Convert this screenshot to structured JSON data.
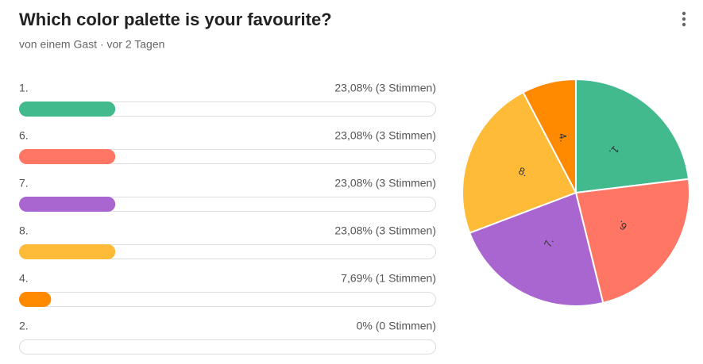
{
  "title": "Which color palette is your favourite?",
  "subtitle": "von einem Gast · vor 2 Tagen",
  "chart_data": [
    {
      "type": "bar",
      "categories": [
        "1.",
        "6.",
        "7.",
        "8.",
        "4.",
        "2."
      ],
      "values": [
        23.08,
        23.08,
        23.08,
        23.08,
        7.69,
        0
      ],
      "value_labels": [
        "23,08% (3 Stimmen)",
        "23,08% (3 Stimmen)",
        "23,08% (3 Stimmen)",
        "23,08% (3 Stimmen)",
        "7,69% (1 Stimmen)",
        "0% (0 Stimmen)"
      ],
      "colors": [
        "#43b98e",
        "#ff7664",
        "#a966d0",
        "#fdbb38",
        "#ff8a00",
        null
      ],
      "xlim": [
        0,
        100
      ]
    },
    {
      "type": "pie",
      "categories": [
        "1.",
        "6.",
        "7.",
        "8.",
        "4."
      ],
      "values": [
        23.08,
        23.08,
        23.08,
        23.08,
        7.69
      ],
      "colors": [
        "#43b98e",
        "#ff7664",
        "#a966d0",
        "#fdbb38",
        "#ff8a00"
      ]
    }
  ]
}
